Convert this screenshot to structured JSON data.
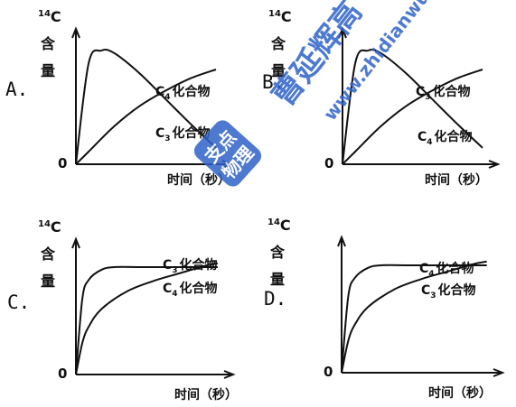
{
  "watermark": {
    "text_large": "曹延辉高",
    "text_url": "www.zhidianwu",
    "text_seal_1": "支点",
    "text_seal_2": "物理",
    "color": "#2f63c8"
  },
  "colors": {
    "ink": "#111111",
    "background": "#ffffff"
  },
  "chart_data": [
    {
      "type": "line",
      "panel_label": "A.",
      "ylabel": {
        "iso": "14",
        "text": "C",
        "line2": "含",
        "line3": "量"
      },
      "xlabel": "时间（秒）",
      "origin_label": "0",
      "series": [
        {
          "name": "C4化合物",
          "name_base": "C",
          "name_sub": "4",
          "name_rest": "化合物",
          "x": [
            0,
            1,
            2,
            3,
            5,
            7,
            9,
            11
          ],
          "y": [
            0,
            0.8,
            0.9,
            0.88,
            0.72,
            0.52,
            0.32,
            0.13
          ]
        },
        {
          "name": "C3化合物",
          "name_base": "C",
          "name_sub": "3",
          "name_rest": "化合物",
          "x": [
            0,
            1,
            3,
            5,
            7,
            9,
            11
          ],
          "y": [
            0,
            0.1,
            0.3,
            0.46,
            0.58,
            0.68,
            0.75
          ]
        }
      ]
    },
    {
      "type": "line",
      "panel_label": "B.",
      "ylabel": {
        "iso": "14",
        "text": "C",
        "line2": "含",
        "line3": "量"
      },
      "xlabel": "时间（秒）",
      "origin_label": "0",
      "series": [
        {
          "name": "C3化合物",
          "name_base": "C",
          "name_sub": "3",
          "name_rest": "化合物",
          "x": [
            0,
            1,
            2,
            3,
            5,
            7,
            9,
            11
          ],
          "y": [
            0,
            0.8,
            0.9,
            0.88,
            0.72,
            0.52,
            0.32,
            0.13
          ]
        },
        {
          "name": "C4化合物",
          "name_base": "C",
          "name_sub": "4",
          "name_rest": "化合物",
          "x": [
            0,
            1,
            3,
            5,
            7,
            9,
            11
          ],
          "y": [
            0,
            0.1,
            0.3,
            0.46,
            0.58,
            0.68,
            0.75
          ]
        }
      ]
    },
    {
      "type": "line",
      "panel_label": "C.",
      "ylabel": {
        "iso": "14",
        "text": "C",
        "line2": "含",
        "line3": "量"
      },
      "xlabel": "时间（秒）",
      "origin_label": "0",
      "series": [
        {
          "name": "C3化合物",
          "name_base": "C",
          "name_sub": "3",
          "name_rest": "化合物",
          "x": [
            0,
            0.5,
            1,
            2,
            3,
            5,
            7,
            9,
            11
          ],
          "y": [
            0,
            0.6,
            0.75,
            0.83,
            0.85,
            0.85,
            0.85,
            0.85,
            0.85
          ]
        },
        {
          "name": "C4化合物",
          "name_base": "C",
          "name_sub": "4",
          "name_rest": "化合物",
          "x": [
            0,
            0.5,
            1,
            2,
            4,
            6,
            8,
            10,
            11
          ],
          "y": [
            0,
            0.25,
            0.38,
            0.52,
            0.66,
            0.74,
            0.8,
            0.86,
            0.88
          ]
        }
      ]
    },
    {
      "type": "line",
      "panel_label": "D.",
      "ylabel": {
        "iso": "14",
        "text": "C",
        "line2": "含",
        "line3": "量"
      },
      "xlabel": "时间（秒）",
      "origin_label": "0",
      "series": [
        {
          "name": "C4化合物",
          "name_base": "C",
          "name_sub": "4",
          "name_rest": "化合物",
          "x": [
            0,
            0.5,
            1,
            2,
            3,
            5,
            7,
            9,
            11
          ],
          "y": [
            0,
            0.6,
            0.75,
            0.83,
            0.85,
            0.85,
            0.85,
            0.85,
            0.85
          ]
        },
        {
          "name": "C3化合物",
          "name_base": "C",
          "name_sub": "3",
          "name_rest": "化合物",
          "x": [
            0,
            0.5,
            1,
            2,
            4,
            6,
            8,
            10,
            11
          ],
          "y": [
            0,
            0.25,
            0.38,
            0.52,
            0.66,
            0.74,
            0.8,
            0.86,
            0.88
          ]
        }
      ]
    }
  ]
}
